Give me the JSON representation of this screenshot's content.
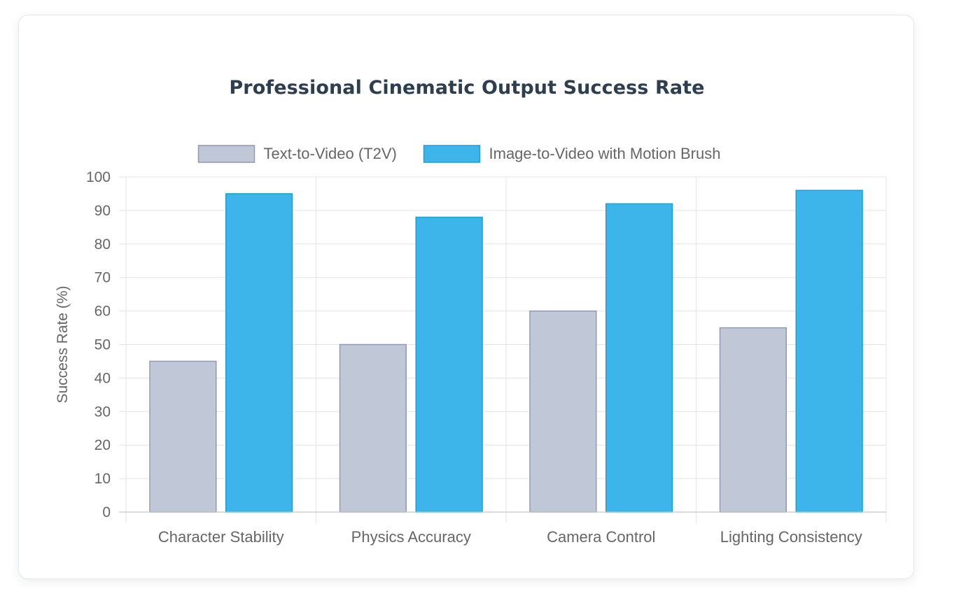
{
  "chart_data": {
    "type": "bar",
    "title": "Professional Cinematic Output Success Rate",
    "xlabel": "",
    "ylabel": "Success Rate (%)",
    "categories": [
      "Character Stability",
      "Physics Accuracy",
      "Camera Control",
      "Lighting Consistency"
    ],
    "ylim": [
      0,
      100
    ],
    "yticks": [
      "0",
      "10",
      "20",
      "30",
      "40",
      "50",
      "60",
      "70",
      "80",
      "90",
      "100"
    ],
    "grid": true,
    "legend_position": "top-center",
    "series": [
      {
        "name": "Text-to-Video (T2V)",
        "values": [
          45,
          50,
          60,
          55
        ],
        "color": "#c0c7d6",
        "border_color": "#8f9bb3"
      },
      {
        "name": "Image-to-Video with Motion Brush",
        "values": [
          95,
          88,
          92,
          96
        ],
        "color": "#3db5ea",
        "border_color": "#1a9fd9"
      }
    ]
  }
}
